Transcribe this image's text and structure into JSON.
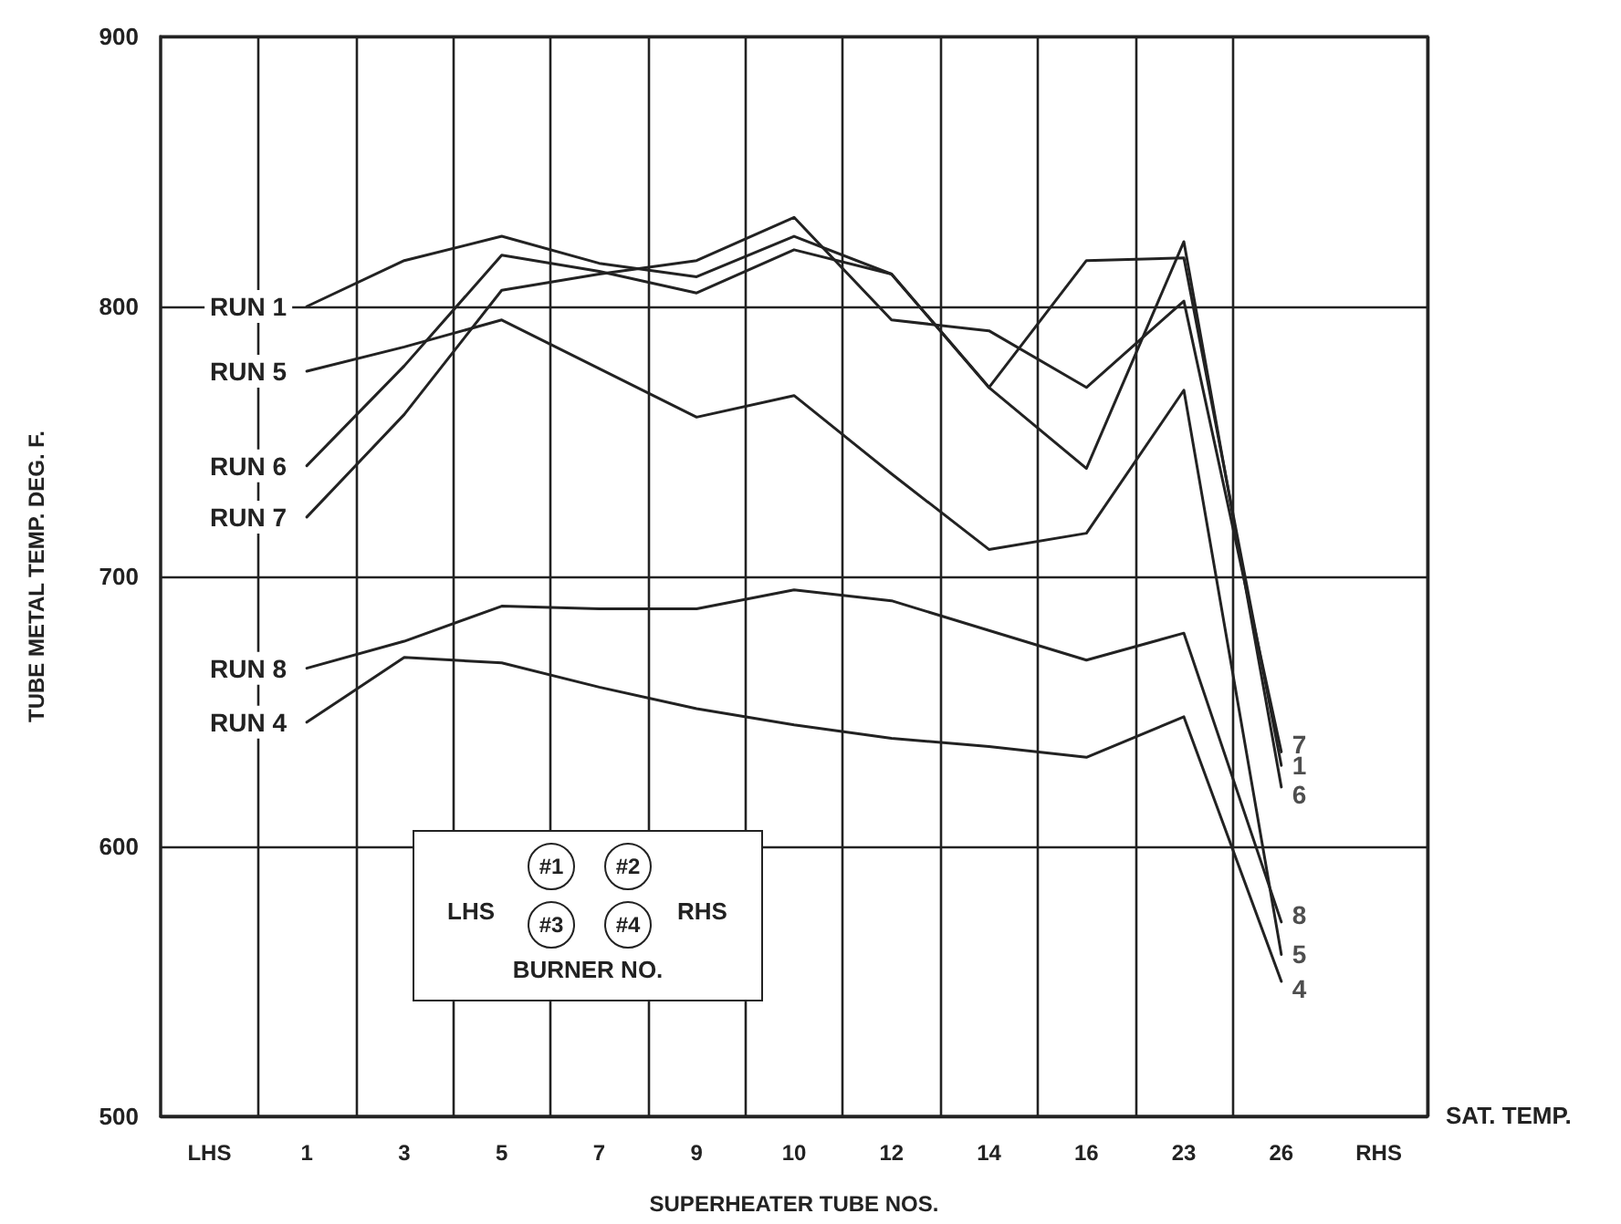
{
  "chart_data": {
    "type": "line",
    "xlabel": "SUPERHEATER TUBE NOS.",
    "ylabel": "TUBE METAL TEMP. DEG. F.",
    "categories": [
      "LHS",
      "1",
      "3",
      "5",
      "7",
      "9",
      "10",
      "12",
      "14",
      "16",
      "23",
      "26",
      "RHS"
    ],
    "series": [
      {
        "name": "RUN 1",
        "color": "#222222",
        "values": [
          null,
          800,
          817,
          826,
          816,
          811,
          826,
          812,
          770,
          817,
          818,
          630,
          null
        ]
      },
      {
        "name": "RUN 5",
        "color": "#222222",
        "values": [
          null,
          776,
          785,
          795,
          777,
          759,
          767,
          738,
          710,
          716,
          769,
          560,
          null
        ]
      },
      {
        "name": "RUN 6",
        "color": "#222222",
        "values": [
          null,
          741,
          778,
          819,
          813,
          805,
          821,
          812,
          770,
          740,
          824,
          622,
          null
        ]
      },
      {
        "name": "RUN 7",
        "color": "#222222",
        "values": [
          null,
          722,
          760,
          806,
          812,
          817,
          833,
          795,
          791,
          770,
          802,
          635,
          null
        ]
      },
      {
        "name": "RUN 8",
        "color": "#222222",
        "values": [
          null,
          666,
          676,
          689,
          688,
          688,
          695,
          691,
          680,
          669,
          679,
          572,
          null
        ]
      },
      {
        "name": "RUN 4",
        "color": "#222222",
        "values": [
          null,
          646,
          670,
          668,
          659,
          651,
          645,
          640,
          637,
          633,
          648,
          550,
          null
        ]
      }
    ],
    "ylim": [
      500,
      900
    ],
    "yticks": [
      500,
      600,
      700,
      800,
      900
    ],
    "grid": true,
    "legend": false,
    "marker": "none",
    "line_style": "solid",
    "annotations": [
      "SAT. TEMP.",
      "BURNER NO.",
      "LHS",
      "RHS",
      "#1",
      "#2",
      "#3",
      "#4",
      {
        "text": "7",
        "x": "26",
        "y": 635
      },
      {
        "text": "1",
        "x": "26",
        "y": 630
      },
      {
        "text": "6",
        "x": "26",
        "y": 622
      },
      {
        "text": "8",
        "x": "26",
        "y": 572
      },
      {
        "text": "5",
        "x": "26",
        "y": 560
      },
      {
        "text": "4",
        "x": "26",
        "y": 550
      }
    ]
  }
}
